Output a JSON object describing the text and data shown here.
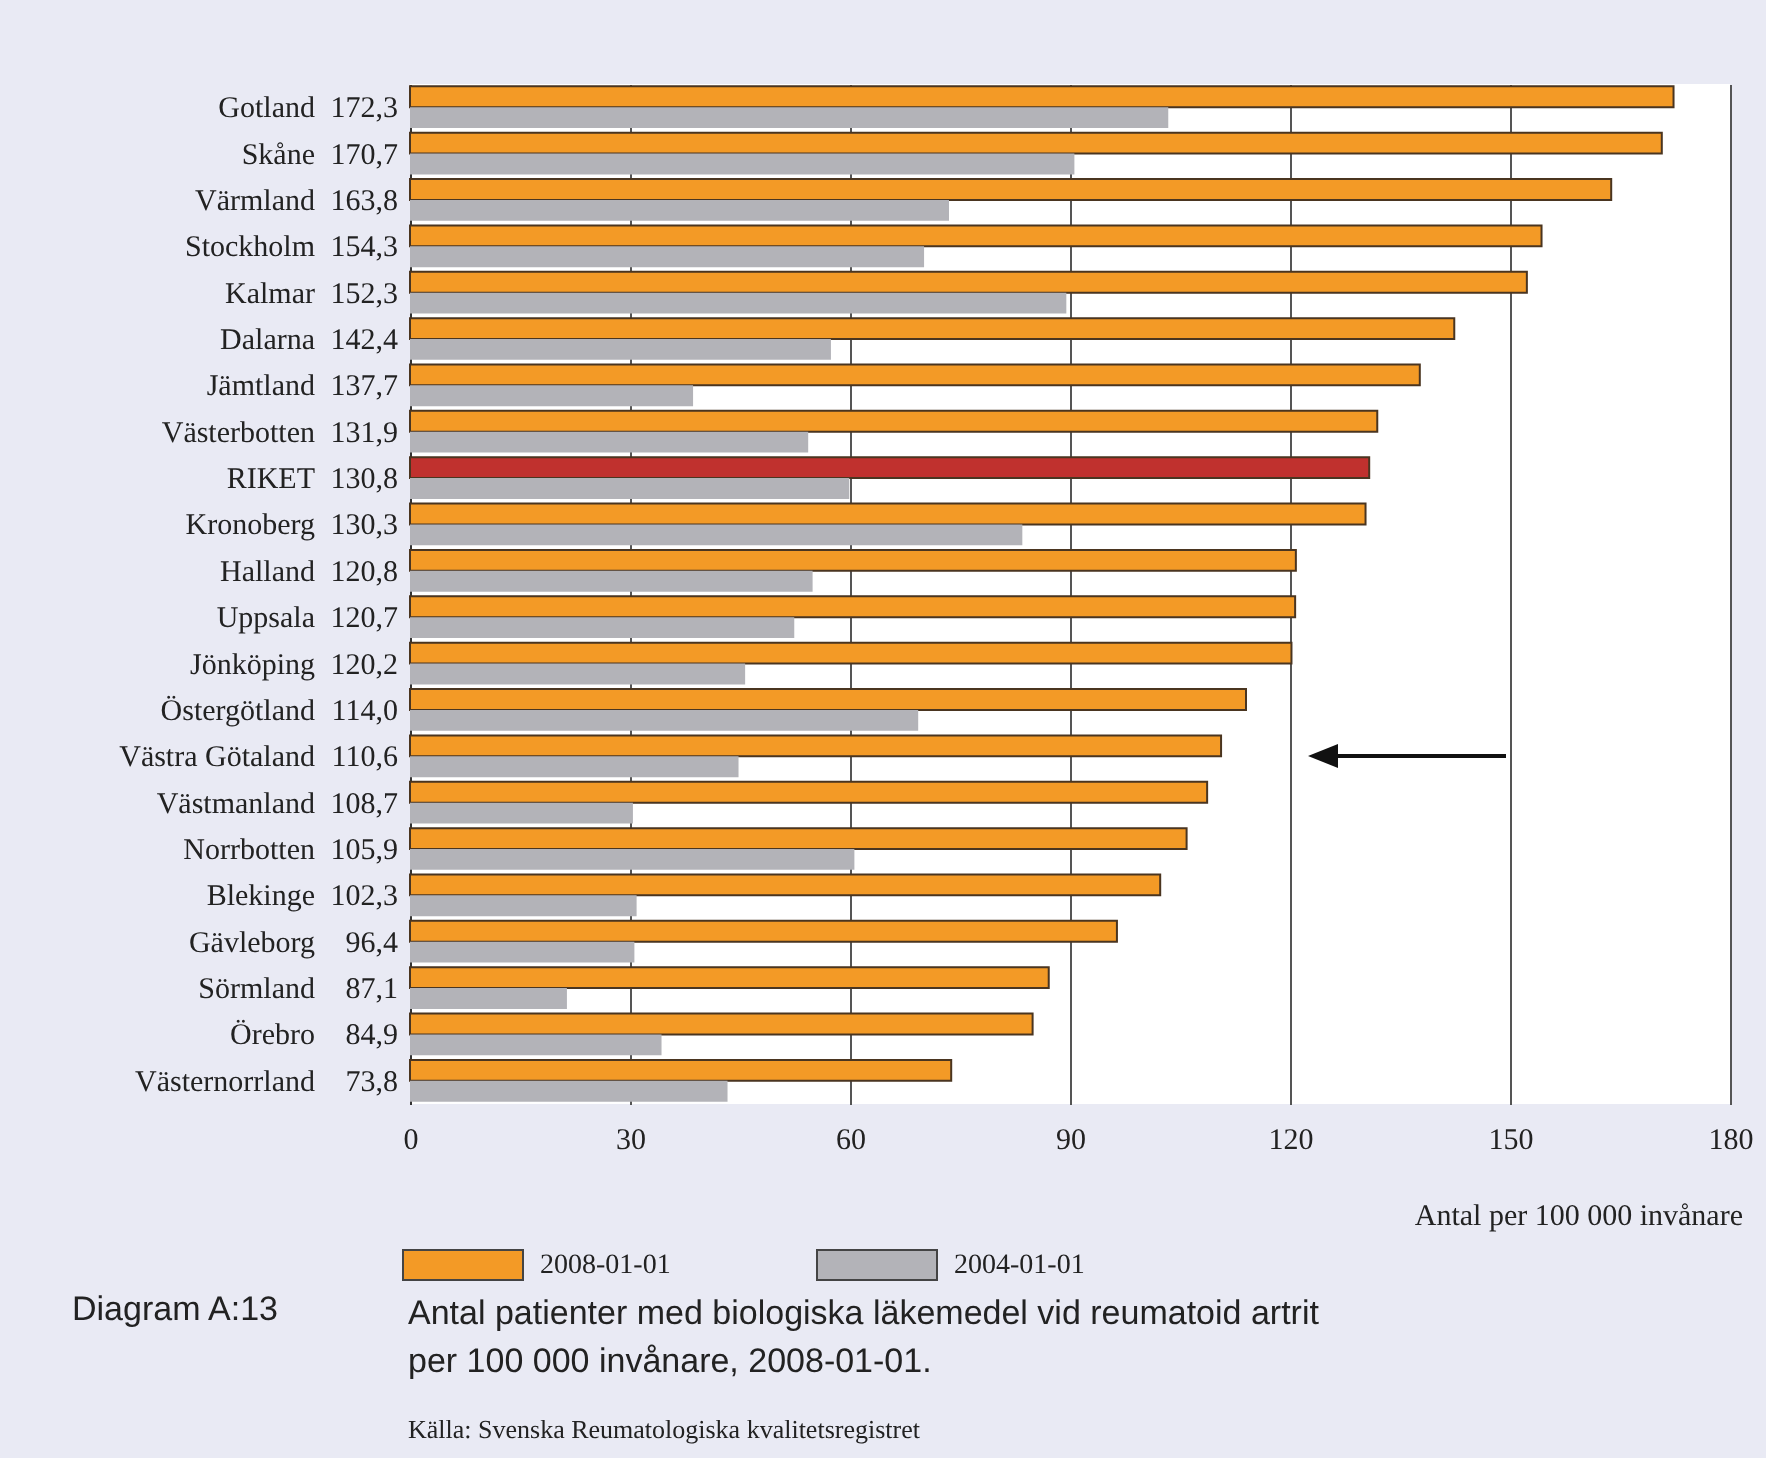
{
  "chart_data": {
    "type": "bar",
    "orientation": "horizontal",
    "title": "Antal patienter med biologiska läkemedel vid reumatoid artrit per 100 000 invånare, 2008-01-01.",
    "annotations": [
      "Diagram A:13",
      "Källa: Svenska Reumatologiska kvalitetsregistret"
    ],
    "xlabel": "Antal per 100 000 invånare",
    "categories": [
      "Gotland",
      "Skåne",
      "Värmland",
      "Stockholm",
      "Kalmar",
      "Dalarna",
      "Jämtland",
      "Västerbotten",
      "RIKET",
      "Kronoberg",
      "Halland",
      "Uppsala",
      "Jönköping",
      "Östergötland",
      "Västra Götaland",
      "Västmanland",
      "Norrbotten",
      "Blekinge",
      "Gävleborg",
      "Sörmland",
      "Örebro",
      "Västernorrland"
    ],
    "series": [
      {
        "name": "2008-01-01",
        "color": "#f39a26",
        "colors": [
          "#f39a26",
          "#f39a26",
          "#f39a26",
          "#f39a26",
          "#f39a26",
          "#f39a26",
          "#f39a26",
          "#f39a26",
          "#c0312e",
          "#f39a26",
          "#f39a26",
          "#f39a26",
          "#f39a26",
          "#f39a26",
          "#f39a26",
          "#f39a26",
          "#f39a26",
          "#f39a26",
          "#f39a26",
          "#f39a26",
          "#f39a26",
          "#f39a26"
        ],
        "values": [
          172.3,
          170.7,
          163.8,
          154.3,
          152.3,
          142.4,
          137.7,
          131.9,
          130.8,
          130.3,
          120.8,
          120.7,
          120.2,
          114.0,
          110.6,
          108.7,
          105.9,
          102.3,
          96.4,
          87.1,
          84.9,
          73.8
        ],
        "value_labels": [
          "172,3",
          "170,7",
          "163,8",
          "154,3",
          "152,3",
          "142,4",
          "137,7",
          "131,9",
          "130,8",
          "130,3",
          "120,8",
          "120,7",
          "120,2",
          "114,0",
          "110,6",
          "108,7",
          "105,9",
          "102,3",
          "96,4",
          "87,1",
          "84,9",
          "73,8"
        ]
      },
      {
        "name": "2004-01-01",
        "color": "#b3b3b8",
        "values": [
          103.4,
          90.6,
          73.5,
          70.1,
          89.5,
          57.4,
          38.6,
          54.3,
          59.9,
          83.5,
          54.9,
          52.4,
          45.7,
          69.3,
          44.8,
          30.4,
          60.6,
          30.9,
          30.6,
          21.4,
          34.3,
          43.3
        ]
      }
    ],
    "xlim": [
      0,
      180
    ],
    "xticks": [
      0,
      30,
      60,
      90,
      120,
      150,
      180
    ],
    "grid": "x",
    "legend": "bottom left"
  }
}
